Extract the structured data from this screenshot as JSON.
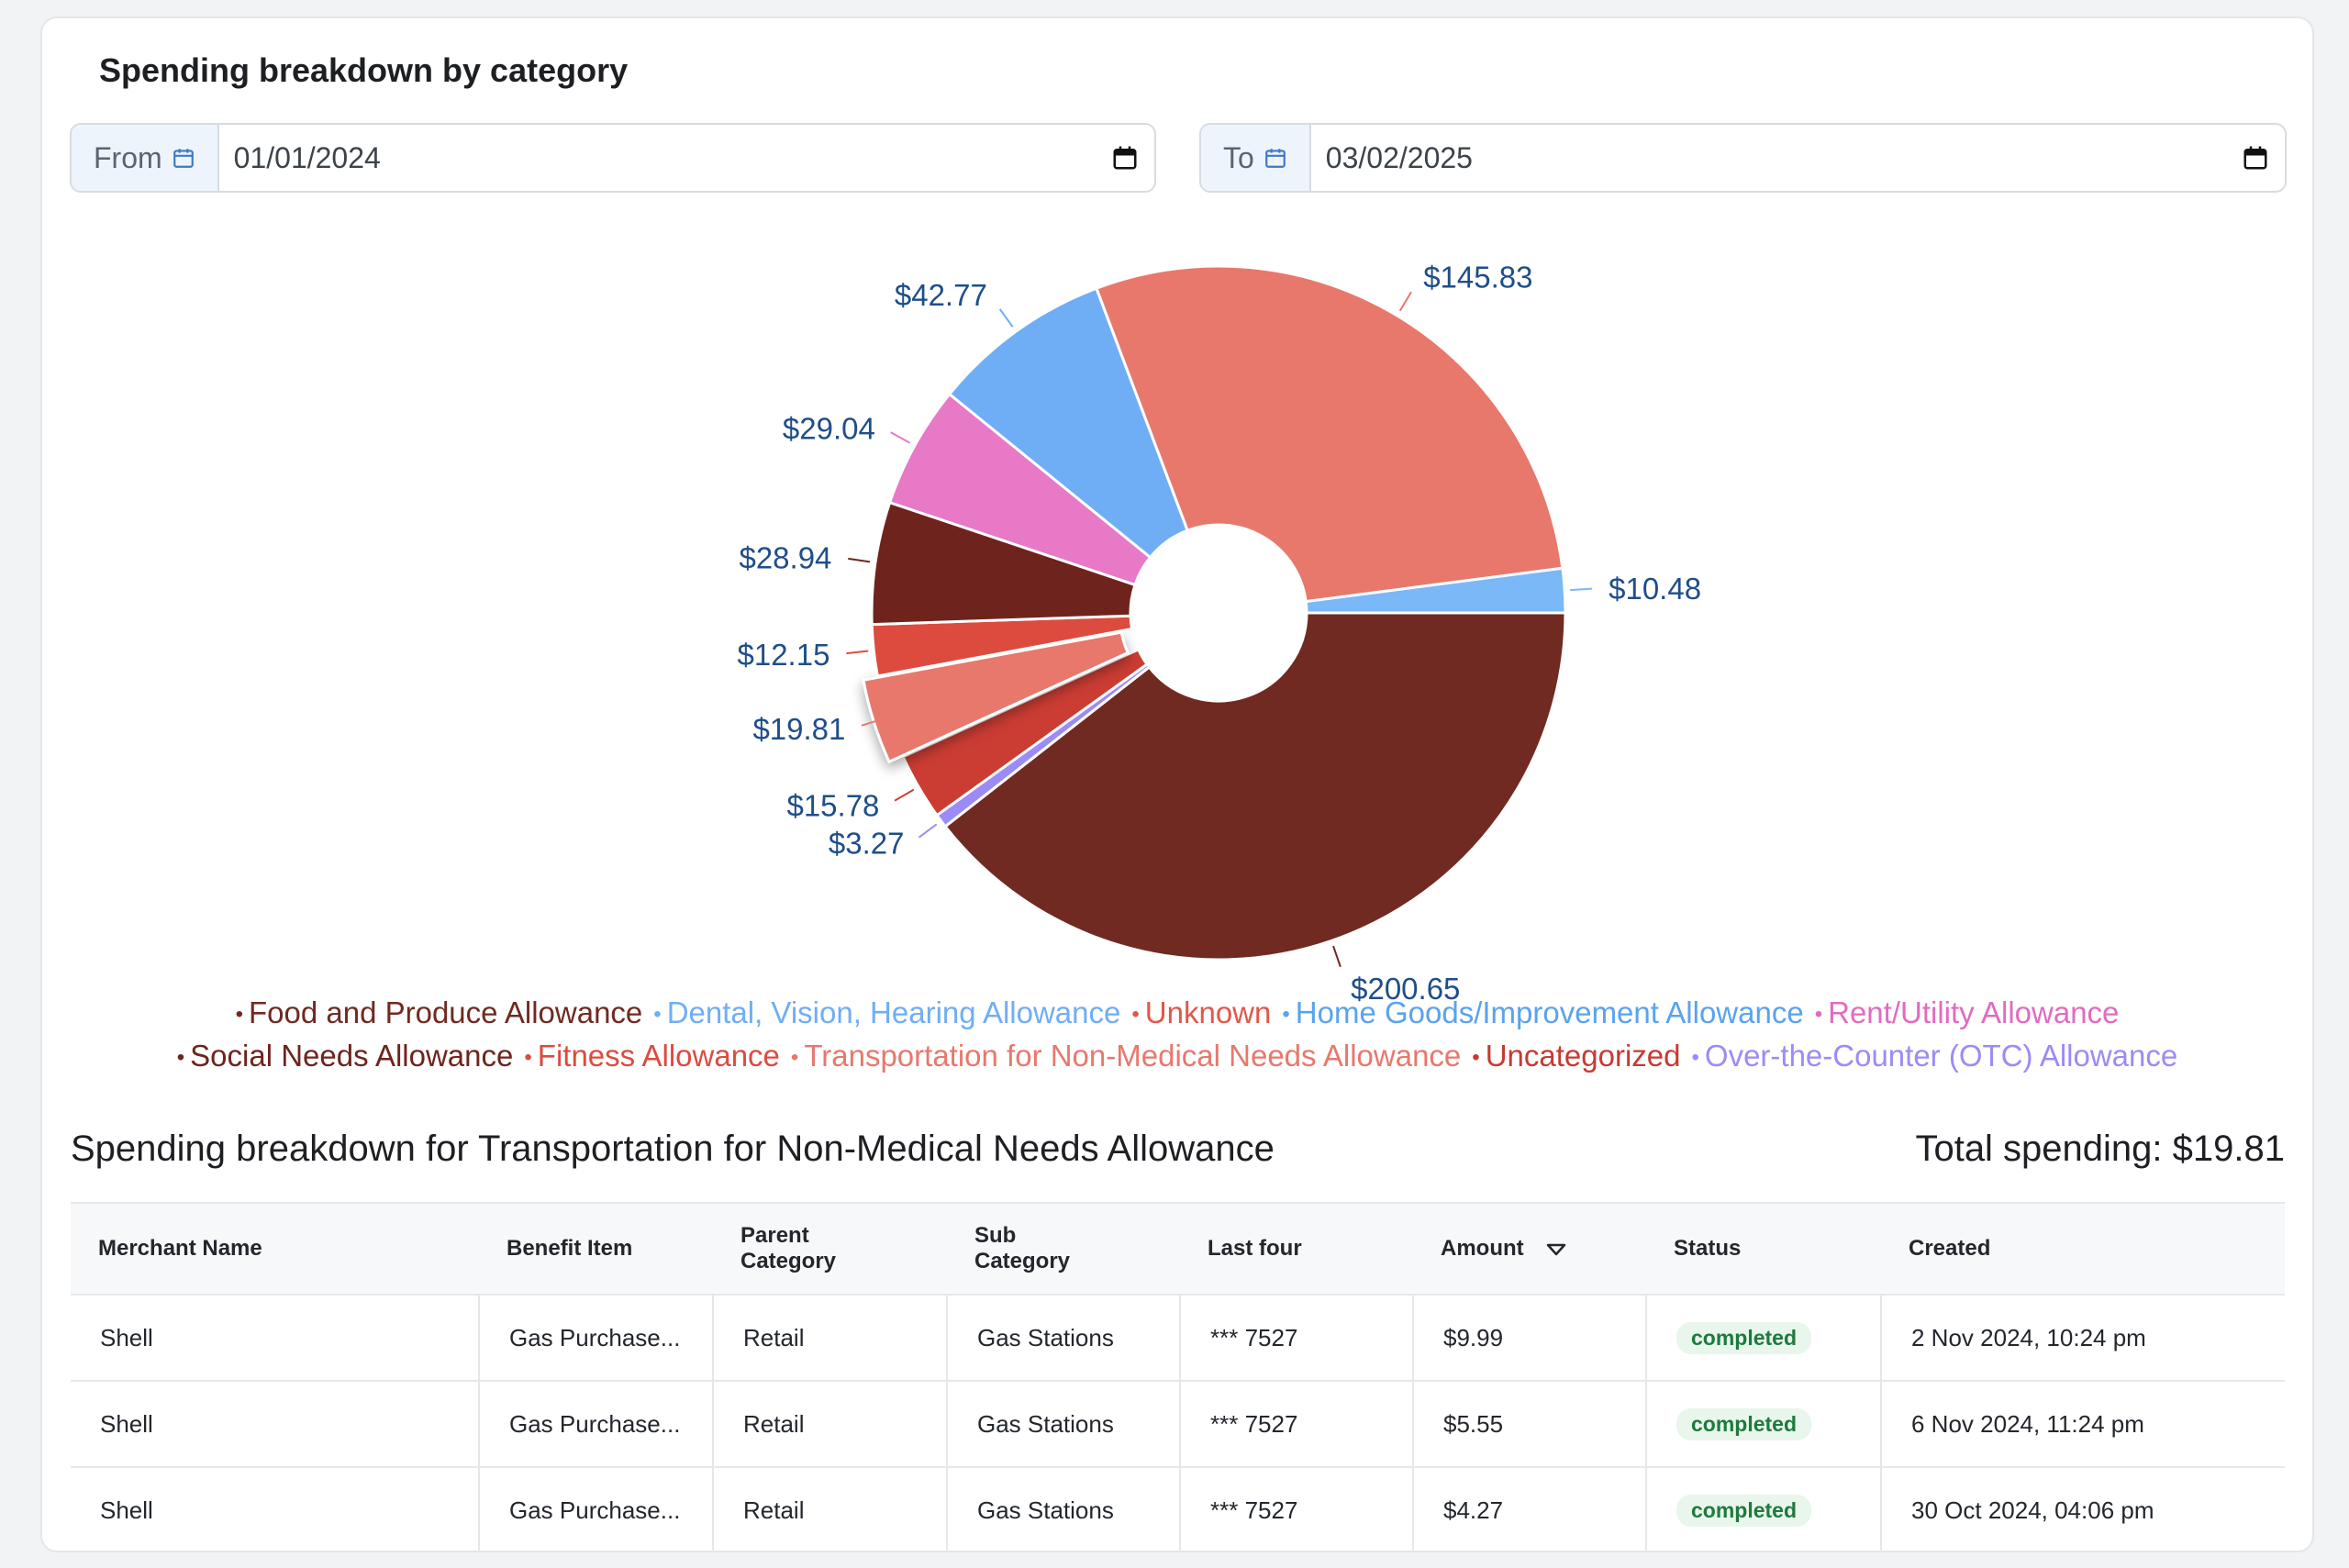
{
  "card": {
    "title": "Spending breakdown by category"
  },
  "from": {
    "label": "From",
    "value": "01/01/2024"
  },
  "to": {
    "label": "To",
    "value": "03/02/2025"
  },
  "chart_data": {
    "type": "pie",
    "slices": [
      {
        "category": "Food and Produce Allowance",
        "value": 200.65,
        "label": "$200.65",
        "color": "#702a22"
      },
      {
        "category": "Over-the-Counter (OTC) Allowance",
        "value": 3.27,
        "label": "$3.27",
        "color": "#9b8cf5"
      },
      {
        "category": "Uncategorized",
        "value": 15.78,
        "label": "$15.78",
        "color": "#cb3c33"
      },
      {
        "category": "Transportation for Non-Medical Needs Allowance",
        "value": 19.81,
        "label": "$19.81",
        "color": "#e8786c",
        "selected": true
      },
      {
        "category": "Fitness Allowance",
        "value": 12.15,
        "label": "$12.15",
        "color": "#dd4b3f"
      },
      {
        "category": "Social Needs Allowance",
        "value": 28.94,
        "label": "$28.94",
        "color": "#6e241d"
      },
      {
        "category": "Rent/Utility Allowance",
        "value": 29.04,
        "label": "$29.04",
        "color": "#e779c7"
      },
      {
        "category": "Home Goods/Improvement Allowance",
        "value": 42.77,
        "label": "$42.77",
        "color": "#6faef5"
      },
      {
        "category": "Unknown",
        "value": 145.83,
        "label": "$145.83",
        "color": "#e8786c"
      },
      {
        "category": "Dental, Vision, Hearing Allowance",
        "value": 10.48,
        "label": "$10.48",
        "color": "#7ab8f7"
      }
    ],
    "legend": [
      [
        {
          "name": "Food and Produce Allowance",
          "color": "#702a22"
        },
        {
          "name": "Dental, Vision, Hearing Allowance",
          "color": "#6faef5"
        },
        {
          "name": "Unknown",
          "color": "#e1574a"
        },
        {
          "name": "Home Goods/Improvement Allowance",
          "color": "#5aa3ee"
        },
        {
          "name": "Rent/Utility Allowance",
          "color": "#e26bbf"
        }
      ],
      [
        {
          "name": "Social Needs Allowance",
          "color": "#6e241d"
        },
        {
          "name": "Fitness Allowance",
          "color": "#dd4b3f"
        },
        {
          "name": "Transportation for Non-Medical Needs Allowance",
          "color": "#e8786c"
        },
        {
          "name": "Uncategorized",
          "color": "#c73a31"
        },
        {
          "name": "Over-the-Counter (OTC) Allowance",
          "color": "#9b8cf5"
        }
      ]
    ],
    "label_color": "#1f4e8a"
  },
  "breakdown": {
    "title": "Spending breakdown for Transportation for Non-Medical Needs Allowance",
    "total": "Total spending: $19.81"
  },
  "table": {
    "headers": [
      "Merchant Name",
      "Benefit Item",
      "Parent\nCategory",
      "Sub\nCategory",
      "Last four",
      "Amount",
      "Status",
      "Created"
    ],
    "rows": [
      [
        "Shell",
        "Gas Purchase...",
        "Retail",
        "Gas Stations",
        "*** 7527",
        "$9.99",
        "completed",
        "2 Nov 2024, 10:24 pm"
      ],
      [
        "Shell",
        "Gas Purchase...",
        "Retail",
        "Gas Stations",
        "*** 7527",
        "$5.55",
        "completed",
        "6 Nov 2024, 11:24 pm"
      ],
      [
        "Shell",
        "Gas Purchase...",
        "Retail",
        "Gas Stations",
        "*** 7527",
        "$4.27",
        "completed",
        "30 Oct 2024, 04:06 pm"
      ]
    ]
  }
}
